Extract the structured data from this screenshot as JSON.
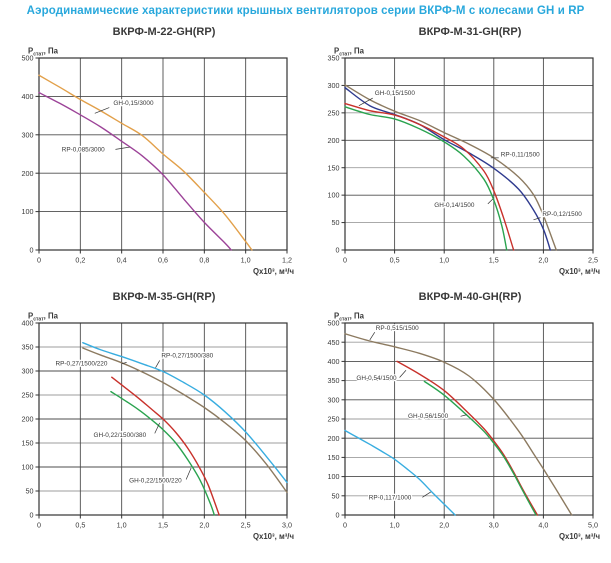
{
  "page": {
    "title": "Аэродинамические характеристики крышных вентиляторов серии ВКРФ-М с колесами GH и RP",
    "title_color": "#29A8DC"
  },
  "palette": {
    "grid_dark": "#4D4D4D",
    "grid_light": "#9E9E9E",
    "frame": "#333333",
    "tick_text": "#3A3A3A",
    "label_text": "#333333"
  },
  "chart_data": [
    {
      "type": "line",
      "title": "ВКРФ-М-22-GH(RP)",
      "ylabel": {
        "p": "P",
        "sub": "стат",
        "rest": ", Па"
      },
      "xlabel": "Qх10³, м³/ч",
      "xlim": [
        0,
        1.2
      ],
      "ylim": [
        0,
        500
      ],
      "x_ticks": [
        {
          "v": 0,
          "t": "0"
        },
        {
          "v": 0.2,
          "t": "0,2"
        },
        {
          "v": 0.4,
          "t": "0,4"
        },
        {
          "v": 0.6,
          "t": "0,6"
        },
        {
          "v": 0.8,
          "t": "0,8"
        },
        {
          "v": 1,
          "t": "1,0"
        },
        {
          "v": 1.2,
          "t": "1,2"
        }
      ],
      "y_ticks": [
        0,
        100,
        200,
        300,
        400,
        500
      ],
      "y_major_every": 100,
      "series": [
        {
          "name": "GH-0,15/3000",
          "color": "#E2A04A",
          "points": [
            [
              0,
              455
            ],
            [
              0.1,
              424
            ],
            [
              0.2,
              392
            ],
            [
              0.3,
              362
            ],
            [
              0.4,
              330
            ],
            [
              0.5,
              298
            ],
            [
              0.6,
              250
            ],
            [
              0.7,
              205
            ],
            [
              0.8,
              150
            ],
            [
              0.9,
              92
            ],
            [
              1.0,
              22
            ],
            [
              1.03,
              0
            ]
          ],
          "label": {
            "x": 0.36,
            "y": 377,
            "anchor": "start",
            "leader": [
              [
                0.34,
                371
              ],
              [
                0.27,
                356
              ]
            ]
          }
        },
        {
          "name": "RP-0,085/3000",
          "color": "#9C4398",
          "points": [
            [
              0,
              410
            ],
            [
              0.1,
              382
            ],
            [
              0.2,
              352
            ],
            [
              0.3,
              320
            ],
            [
              0.4,
              283
            ],
            [
              0.5,
              245
            ],
            [
              0.6,
              196
            ],
            [
              0.7,
              133
            ],
            [
              0.8,
              72
            ],
            [
              0.9,
              18
            ],
            [
              0.93,
              0
            ]
          ],
          "label": {
            "x": 0.11,
            "y": 257,
            "anchor": "start",
            "leader": [
              [
                0.37,
                262
              ],
              [
                0.44,
                268
              ]
            ]
          }
        }
      ]
    },
    {
      "type": "line",
      "title": "ВКРФ-М-31-GH(RP)",
      "ylabel": {
        "p": "P",
        "sub": "стат",
        "rest": ", Па"
      },
      "xlabel": "Qх10³, м³/ч",
      "xlim": [
        0,
        2.5
      ],
      "ylim": [
        0,
        350
      ],
      "x_ticks": [
        {
          "v": 0,
          "t": "0"
        },
        {
          "v": 0.5,
          "t": "0,5"
        },
        {
          "v": 1,
          "t": "1,0"
        },
        {
          "v": 1.5,
          "t": "1,5"
        },
        {
          "v": 2,
          "t": "2,0"
        },
        {
          "v": 2.5,
          "t": "2,5"
        }
      ],
      "y_ticks": [
        0,
        50,
        100,
        150,
        200,
        250,
        300,
        350
      ],
      "y_major_every": 100,
      "series": [
        {
          "name": "RP-0,11/1500",
          "color": "#8C7A60",
          "points": [
            [
              0,
              301
            ],
            [
              0.25,
              274
            ],
            [
              0.5,
              253
            ],
            [
              0.75,
              236
            ],
            [
              1.0,
              214
            ],
            [
              1.25,
              193
            ],
            [
              1.5,
              168
            ],
            [
              1.75,
              133
            ],
            [
              1.9,
              101
            ],
            [
              2.0,
              63
            ],
            [
              2.13,
              0
            ]
          ],
          "label": {
            "x": 1.57,
            "y": 170,
            "anchor": "start",
            "leader": [
              [
                1.55,
                168
              ],
              [
                1.47,
                168
              ]
            ]
          }
        },
        {
          "name": "RP-0,12/1500",
          "color": "#2F3B8F",
          "points": [
            [
              0,
              296
            ],
            [
              0.25,
              263
            ],
            [
              0.5,
              247
            ],
            [
              0.75,
              229
            ],
            [
              1.0,
              201
            ],
            [
              1.25,
              177
            ],
            [
              1.5,
              149
            ],
            [
              1.75,
              111
            ],
            [
              1.9,
              73
            ],
            [
              2.0,
              38
            ],
            [
              2.07,
              0
            ]
          ],
          "label": {
            "x": 1.99,
            "y": 62,
            "anchor": "start",
            "leader": [
              [
                1.97,
                59
              ],
              [
                1.9,
                55
              ]
            ]
          }
        },
        {
          "name": "GH-0,15/1500",
          "color": "#C8312B",
          "points": [
            [
              0,
              267
            ],
            [
              0.25,
              254
            ],
            [
              0.5,
              246
            ],
            [
              0.75,
              229
            ],
            [
              1.0,
              206
            ],
            [
              1.2,
              184
            ],
            [
              1.4,
              144
            ],
            [
              1.5,
              108
            ],
            [
              1.6,
              58
            ],
            [
              1.7,
              0
            ]
          ],
          "label": {
            "x": 0.3,
            "y": 283,
            "anchor": "start",
            "leader": [
              [
                0.28,
                277
              ],
              [
                0.14,
                263
              ]
            ]
          }
        },
        {
          "name": "GH-0,14/1500",
          "color": "#2AA34F",
          "points": [
            [
              0,
              261
            ],
            [
              0.25,
              247
            ],
            [
              0.5,
              239
            ],
            [
              0.75,
              221
            ],
            [
              1.0,
              197
            ],
            [
              1.2,
              171
            ],
            [
              1.4,
              129
            ],
            [
              1.5,
              91
            ],
            [
              1.58,
              45
            ],
            [
              1.63,
              0
            ]
          ],
          "label": {
            "x": 0.9,
            "y": 78,
            "anchor": "start",
            "leader": [
              [
                1.44,
                84
              ],
              [
                1.49,
                93
              ]
            ]
          }
        }
      ]
    },
    {
      "type": "line",
      "title": "ВКРФ-М-35-GH(RP)",
      "ylabel": {
        "p": "P",
        "sub": "стат",
        "rest": ", Па"
      },
      "xlabel": "Qх10³, м³/ч",
      "xlim": [
        0,
        3
      ],
      "ylim": [
        0,
        400
      ],
      "x_ticks": [
        {
          "v": 0,
          "t": "0"
        },
        {
          "v": 0.5,
          "t": "0,5"
        },
        {
          "v": 1,
          "t": "1,0"
        },
        {
          "v": 1.5,
          "t": "1,5"
        },
        {
          "v": 2,
          "t": "2,0"
        },
        {
          "v": 2.5,
          "t": "2,5"
        },
        {
          "v": 3,
          "t": "3,0"
        }
      ],
      "y_ticks": [
        0,
        50,
        100,
        150,
        200,
        250,
        300,
        350,
        400
      ],
      "y_major_every": 100,
      "series": [
        {
          "name": "RP-0,27/1500/380",
          "color": "#38ADE0",
          "points": [
            [
              0.53,
              359
            ],
            [
              0.75,
              344
            ],
            [
              1.0,
              330
            ],
            [
              1.25,
              315
            ],
            [
              1.5,
              299
            ],
            [
              1.75,
              276
            ],
            [
              2.0,
              250
            ],
            [
              2.25,
              215
            ],
            [
              2.5,
              173
            ],
            [
              2.75,
              122
            ],
            [
              3.0,
              68
            ]
          ],
          "label": {
            "x": 1.48,
            "y": 328,
            "anchor": "start",
            "leader": [
              [
                1.46,
                322
              ],
              [
                1.41,
                307
              ]
            ]
          }
        },
        {
          "name": "RP-0,27/1500/220",
          "color": "#8C7A60",
          "points": [
            [
              0.53,
              348
            ],
            [
              0.75,
              333
            ],
            [
              1.0,
              317
            ],
            [
              1.25,
              298
            ],
            [
              1.5,
              276
            ],
            [
              1.75,
              251
            ],
            [
              2.0,
              224
            ],
            [
              2.25,
              192
            ],
            [
              2.5,
              155
            ],
            [
              2.75,
              106
            ],
            [
              3.0,
              47
            ]
          ],
          "label": {
            "x": 0.2,
            "y": 311,
            "anchor": "start",
            "leader": [
              [
                1.0,
                315
              ],
              [
                1.06,
                318
              ]
            ]
          }
        },
        {
          "name": "GH-0,22/1500/380",
          "color": "#C8312B",
          "points": [
            [
              0.88,
              287
            ],
            [
              1.0,
              271
            ],
            [
              1.2,
              244
            ],
            [
              1.35,
              222
            ],
            [
              1.5,
              200
            ],
            [
              1.65,
              173
            ],
            [
              1.8,
              139
            ],
            [
              1.95,
              96
            ],
            [
              2.05,
              61
            ],
            [
              2.18,
              0
            ]
          ],
          "label": {
            "x": 0.66,
            "y": 163,
            "anchor": "start",
            "leader": [
              [
                1.4,
                170
              ],
              [
                1.46,
                192
              ]
            ]
          }
        },
        {
          "name": "GH-0,22/1500/220",
          "color": "#2AA34F",
          "points": [
            [
              0.87,
              257
            ],
            [
              1.0,
              243
            ],
            [
              1.2,
              220
            ],
            [
              1.35,
              200
            ],
            [
              1.5,
              178
            ],
            [
              1.65,
              151
            ],
            [
              1.8,
              115
            ],
            [
              1.95,
              72
            ],
            [
              2.07,
              25
            ],
            [
              2.12,
              0
            ]
          ],
          "label": {
            "x": 1.09,
            "y": 68,
            "anchor": "start",
            "leader": [
              [
                1.78,
                74
              ],
              [
                1.84,
                98
              ]
            ]
          }
        }
      ]
    },
    {
      "type": "line",
      "title": "ВКРФ-М-40-GH(RP)",
      "ylabel": {
        "p": "P",
        "sub": "стат",
        "rest": ", Па"
      },
      "xlabel": "Qх10³, м³/ч",
      "xlim": [
        0,
        5
      ],
      "ylim": [
        0,
        500
      ],
      "x_ticks": [
        {
          "v": 0,
          "t": "0"
        },
        {
          "v": 1,
          "t": "1,0"
        },
        {
          "v": 2,
          "t": "2,0"
        },
        {
          "v": 3,
          "t": "3,0"
        },
        {
          "v": 4,
          "t": "4,0"
        },
        {
          "v": 5,
          "t": "5,0"
        }
      ],
      "y_ticks": [
        0,
        50,
        100,
        150,
        200,
        250,
        300,
        350,
        400,
        450,
        500
      ],
      "y_major_every": 100,
      "series": [
        {
          "name": "RP-0,515/1500",
          "color": "#8C7A60",
          "points": [
            [
              0,
              472
            ],
            [
              0.5,
              453
            ],
            [
              1.0,
              438
            ],
            [
              1.5,
              421
            ],
            [
              2.0,
              398
            ],
            [
              2.5,
              362
            ],
            [
              3.0,
              301
            ],
            [
              3.5,
              219
            ],
            [
              3.8,
              160
            ],
            [
              4.0,
              120
            ],
            [
              4.25,
              68
            ],
            [
              4.57,
              0
            ]
          ],
          "label": {
            "x": 0.62,
            "y": 482,
            "anchor": "start",
            "leader": [
              [
                0.6,
                476
              ],
              [
                0.5,
                456
              ]
            ]
          }
        },
        {
          "name": "GH-0,54/1500",
          "color": "#C8312B",
          "points": [
            [
              1.05,
              400
            ],
            [
              1.5,
              367
            ],
            [
              2.0,
              324
            ],
            [
              2.5,
              264
            ],
            [
              2.8,
              225
            ],
            [
              3.0,
              193
            ],
            [
              3.2,
              157
            ],
            [
              3.4,
              112
            ],
            [
              3.6,
              63
            ],
            [
              3.88,
              0
            ]
          ],
          "label": {
            "x": 0.23,
            "y": 352,
            "anchor": "start",
            "leader": [
              [
                1.1,
                358
              ],
              [
                1.23,
                377
              ]
            ]
          }
        },
        {
          "name": "GH-0,56/1500",
          "color": "#2AA34F",
          "points": [
            [
              1.6,
              348
            ],
            [
              2.0,
              312
            ],
            [
              2.5,
              255
            ],
            [
              2.8,
              218
            ],
            [
              3.0,
              187
            ],
            [
              3.2,
              152
            ],
            [
              3.4,
              108
            ],
            [
              3.6,
              59
            ],
            [
              3.85,
              0
            ]
          ],
          "label": {
            "x": 1.27,
            "y": 252,
            "anchor": "start",
            "leader": [
              [
                2.33,
                257
              ],
              [
                2.45,
                261
              ]
            ]
          }
        },
        {
          "name": "RP-0,117/1000",
          "color": "#38ADE0",
          "points": [
            [
              0,
              220
            ],
            [
              0.25,
              202
            ],
            [
              0.5,
              184
            ],
            [
              0.75,
              165
            ],
            [
              1.0,
              145
            ],
            [
              1.25,
              120
            ],
            [
              1.5,
              93
            ],
            [
              1.75,
              60
            ],
            [
              2.0,
              28
            ],
            [
              2.22,
              0
            ]
          ],
          "label": {
            "x": 0.48,
            "y": 40,
            "anchor": "start",
            "leader": [
              [
                1.56,
                46
              ],
              [
                1.73,
                60
              ]
            ]
          }
        }
      ]
    }
  ]
}
